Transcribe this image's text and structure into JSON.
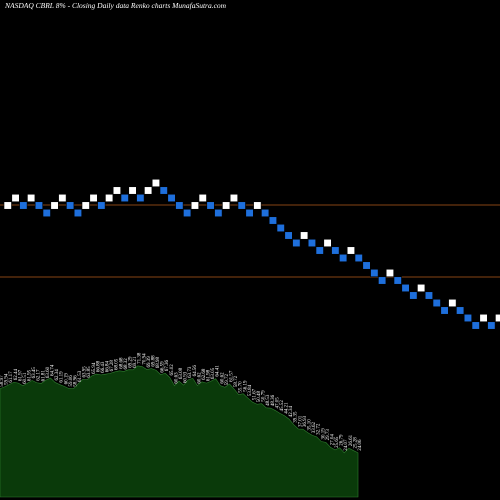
{
  "header": {
    "title": "NASDAQ CBRL  8% -  Closing Daily data  Renko  charts MunafaSutra.com"
  },
  "colors": {
    "background": "#000000",
    "up_brick": "#ffffff",
    "down_brick": "#1e6fdc",
    "brick_border": "#000000",
    "reference_line": "#b35a1a",
    "volume_fill": "#0a3a0a",
    "volume_stroke": "#2e7d2e",
    "label": "#ffffff"
  },
  "chart_data": {
    "type": "renko",
    "box_size_percent": 8,
    "reference_levels": [
      1,
      0
    ],
    "bricks": [
      {
        "direction": "up",
        "level": 0
      },
      {
        "direction": "up",
        "level": 1
      },
      {
        "direction": "down",
        "level": 0
      },
      {
        "direction": "up",
        "level": 1
      },
      {
        "direction": "down",
        "level": 0
      },
      {
        "direction": "down",
        "level": -1
      },
      {
        "direction": "up",
        "level": 0
      },
      {
        "direction": "up",
        "level": 1
      },
      {
        "direction": "down",
        "level": 0
      },
      {
        "direction": "down",
        "level": -1
      },
      {
        "direction": "up",
        "level": 0
      },
      {
        "direction": "up",
        "level": 1
      },
      {
        "direction": "down",
        "level": 0
      },
      {
        "direction": "up",
        "level": 1
      },
      {
        "direction": "up",
        "level": 2
      },
      {
        "direction": "down",
        "level": 1
      },
      {
        "direction": "up",
        "level": 2
      },
      {
        "direction": "down",
        "level": 1
      },
      {
        "direction": "up",
        "level": 2
      },
      {
        "direction": "up",
        "level": 3
      },
      {
        "direction": "down",
        "level": 2
      },
      {
        "direction": "down",
        "level": 1
      },
      {
        "direction": "down",
        "level": 0
      },
      {
        "direction": "down",
        "level": -1
      },
      {
        "direction": "up",
        "level": 0
      },
      {
        "direction": "up",
        "level": 1
      },
      {
        "direction": "down",
        "level": 0
      },
      {
        "direction": "down",
        "level": -1
      },
      {
        "direction": "up",
        "level": 0
      },
      {
        "direction": "up",
        "level": 1
      },
      {
        "direction": "down",
        "level": 0
      },
      {
        "direction": "down",
        "level": -1
      },
      {
        "direction": "up",
        "level": 0
      },
      {
        "direction": "down",
        "level": -1
      },
      {
        "direction": "down",
        "level": -2
      },
      {
        "direction": "down",
        "level": -3
      },
      {
        "direction": "down",
        "level": -4
      },
      {
        "direction": "down",
        "level": -5
      },
      {
        "direction": "up",
        "level": -4
      },
      {
        "direction": "down",
        "level": -5
      },
      {
        "direction": "down",
        "level": -6
      },
      {
        "direction": "up",
        "level": -5
      },
      {
        "direction": "down",
        "level": -6
      },
      {
        "direction": "down",
        "level": -7
      },
      {
        "direction": "up",
        "level": -6
      },
      {
        "direction": "down",
        "level": -7
      },
      {
        "direction": "down",
        "level": -8
      },
      {
        "direction": "down",
        "level": -9
      },
      {
        "direction": "down",
        "level": -10
      },
      {
        "direction": "up",
        "level": -9
      },
      {
        "direction": "down",
        "level": -10
      },
      {
        "direction": "down",
        "level": -11
      },
      {
        "direction": "down",
        "level": -12
      },
      {
        "direction": "up",
        "level": -11
      },
      {
        "direction": "down",
        "level": -12
      },
      {
        "direction": "down",
        "level": -13
      },
      {
        "direction": "down",
        "level": -14
      },
      {
        "direction": "up",
        "level": -13
      },
      {
        "direction": "down",
        "level": -14
      },
      {
        "direction": "down",
        "level": -15
      },
      {
        "direction": "down",
        "level": -16
      },
      {
        "direction": "up",
        "level": -15
      },
      {
        "direction": "down",
        "level": -16
      },
      {
        "direction": "up",
        "level": -15
      },
      {
        "direction": "down",
        "level": -16
      }
    ],
    "price_profile": [
      {
        "label": "58.97",
        "value": 58.97
      },
      {
        "label": "59.94",
        "value": 59.94
      },
      {
        "label": "61.17",
        "value": 61.17
      },
      {
        "label": "62.44",
        "value": 62.44
      },
      {
        "label": "61.97",
        "value": 61.97
      },
      {
        "label": "60.51",
        "value": 60.51
      },
      {
        "label": "61.95",
        "value": 61.95
      },
      {
        "label": "63.45",
        "value": 63.45
      },
      {
        "label": "62.17",
        "value": 62.17
      },
      {
        "label": "61.81",
        "value": 61.81
      },
      {
        "label": "63.60",
        "value": 63.6
      },
      {
        "label": "64.74",
        "value": 64.74
      },
      {
        "label": "62.34",
        "value": 62.34
      },
      {
        "label": "61.19",
        "value": 61.19
      },
      {
        "label": "60.19",
        "value": 60.19
      },
      {
        "label": "59.06",
        "value": 59.06
      },
      {
        "label": "58.96",
        "value": 58.96
      },
      {
        "label": "61.53",
        "value": 61.53
      },
      {
        "label": "63.95",
        "value": 63.95
      },
      {
        "label": "63.85",
        "value": 63.85
      },
      {
        "label": "65.94",
        "value": 65.94
      },
      {
        "label": "66.88",
        "value": 66.88
      },
      {
        "label": "66.43",
        "value": 66.43
      },
      {
        "label": "66.84",
        "value": 66.84
      },
      {
        "label": "67.28",
        "value": 67.28
      },
      {
        "label": "68.05",
        "value": 68.05
      },
      {
        "label": "68.68",
        "value": 68.68
      },
      {
        "label": "68.32",
        "value": 68.32
      },
      {
        "label": "69.29",
        "value": 69.29
      },
      {
        "label": "69.21",
        "value": 69.21
      },
      {
        "label": "71.38",
        "value": 71.38
      },
      {
        "label": "70.94",
        "value": 70.94
      },
      {
        "label": "69.39",
        "value": 69.39
      },
      {
        "label": "69.88",
        "value": 69.88
      },
      {
        "label": "68.98",
        "value": 68.98
      },
      {
        "label": "66.59",
        "value": 66.59
      },
      {
        "label": "67.36",
        "value": 67.36
      },
      {
        "label": "65.02",
        "value": 65.02
      },
      {
        "label": "60.63",
        "value": 60.63
      },
      {
        "label": "63.08",
        "value": 63.08
      },
      {
        "label": "60.93",
        "value": 60.93
      },
      {
        "label": "63.73",
        "value": 63.73
      },
      {
        "label": "64.56",
        "value": 64.56
      },
      {
        "label": "60.62",
        "value": 60.62
      },
      {
        "label": "62.68",
        "value": 62.68
      },
      {
        "label": "61.98",
        "value": 61.98
      },
      {
        "label": "63.05",
        "value": 63.05
      },
      {
        "label": "64.41",
        "value": 64.41
      },
      {
        "label": "60.62",
        "value": 60.62
      },
      {
        "label": "59.72",
        "value": 59.72
      },
      {
        "label": "61.57",
        "value": 61.57
      },
      {
        "label": "58.72",
        "value": 58.72
      },
      {
        "label": "55.70",
        "value": 55.7
      },
      {
        "label": "56.19",
        "value": 56.19
      },
      {
        "label": "53.84",
        "value": 53.84
      },
      {
        "label": "51.67",
        "value": 51.67
      },
      {
        "label": "50.48",
        "value": 50.48
      },
      {
        "label": "50.79",
        "value": 50.79
      },
      {
        "label": "48.53",
        "value": 48.53
      },
      {
        "label": "48.36",
        "value": 48.36
      },
      {
        "label": "47.05",
        "value": 47.05
      },
      {
        "label": "45.52",
        "value": 45.52
      },
      {
        "label": "44.21",
        "value": 44.21
      },
      {
        "label": "42.34",
        "value": 42.34
      },
      {
        "label": "39.35",
        "value": 39.35
      },
      {
        "label": "37.01",
        "value": 37.01
      },
      {
        "label": "36.93",
        "value": 36.93
      },
      {
        "label": "35.10",
        "value": 35.1
      },
      {
        "label": "33.62",
        "value": 33.62
      },
      {
        "label": "32.72",
        "value": 32.72
      },
      {
        "label": "30.19",
        "value": 30.19
      },
      {
        "label": "29.73",
        "value": 29.73
      },
      {
        "label": "27.04",
        "value": 27.04
      },
      {
        "label": "25.65",
        "value": 25.65
      },
      {
        "label": "26.79",
        "value": 26.79
      },
      {
        "label": "24.07",
        "value": 24.07
      },
      {
        "label": "26.61",
        "value": 26.61
      },
      {
        "label": "25.28",
        "value": 25.28
      },
      {
        "label": "24.06",
        "value": 24.06
      }
    ],
    "price_profile_range": [
      0,
      80
    ]
  }
}
